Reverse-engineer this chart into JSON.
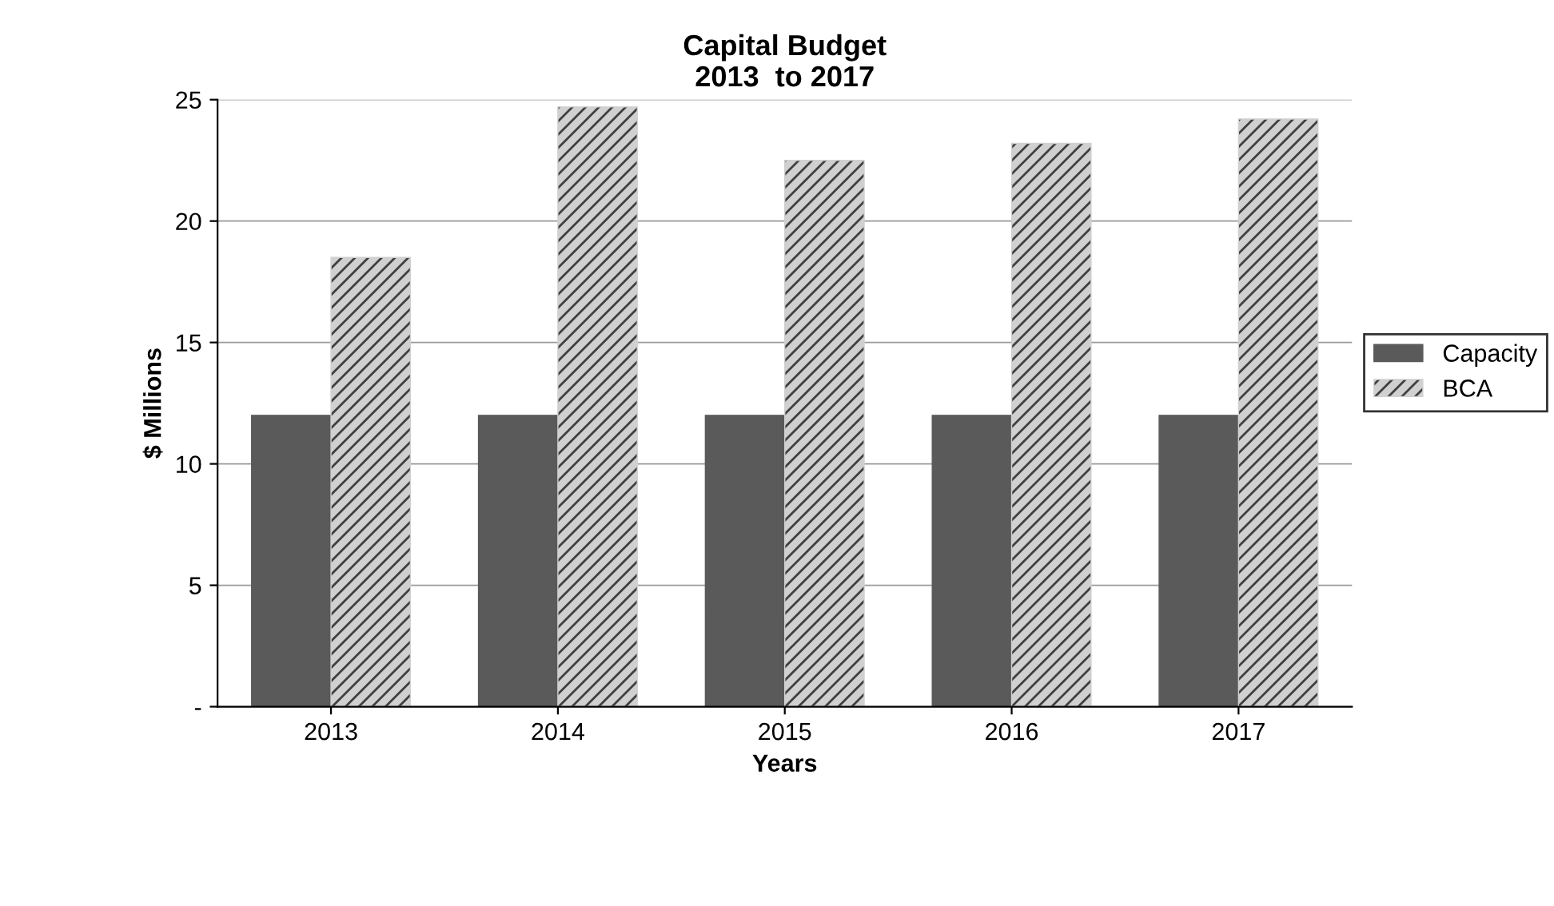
{
  "chart_data": {
    "type": "bar",
    "title": "Capital Budget\n2013  to 2017",
    "xlabel": "Years",
    "ylabel": "$ Millions",
    "categories": [
      "2013",
      "2014",
      "2015",
      "2016",
      "2017"
    ],
    "series": [
      {
        "name": "Capacity",
        "color": "#5a5a5a",
        "values": [
          12,
          12,
          12,
          12,
          12
        ]
      },
      {
        "name": "BCA",
        "color": "#d0d0d0",
        "values": [
          18.5,
          24.7,
          22.5,
          23.2,
          24.2
        ]
      }
    ],
    "ylim": [
      0,
      25
    ],
    "yticks": [
      {
        "value": 0,
        "label": "-"
      },
      5,
      10,
      15,
      20,
      25
    ],
    "grid": "y",
    "legend": "right"
  }
}
